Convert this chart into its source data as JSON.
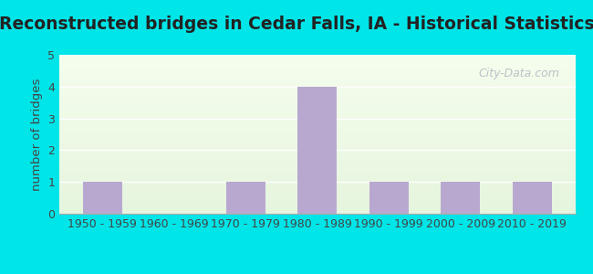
{
  "title": "Reconstructed bridges in Cedar Falls, IA - Historical Statistics",
  "categories": [
    "1950 - 1959",
    "1960 - 1969",
    "1970 - 1979",
    "1980 - 1989",
    "1990 - 1999",
    "2000 - 2009",
    "2010 - 2019"
  ],
  "values": [
    1,
    0,
    1,
    4,
    1,
    1,
    1
  ],
  "bar_color": "#b8a8d0",
  "ylabel": "number of bridges",
  "ylim": [
    0,
    5
  ],
  "yticks": [
    0,
    1,
    2,
    3,
    4,
    5
  ],
  "title_fontsize": 13.5,
  "label_fontsize": 9.5,
  "tick_fontsize": 9,
  "bg_outer": "#00e5e8",
  "watermark": "City-Data.com",
  "bar_width": 0.55,
  "grid_color": "#ffffff",
  "spine_color": "#aaaaaa",
  "text_color": "#444444"
}
